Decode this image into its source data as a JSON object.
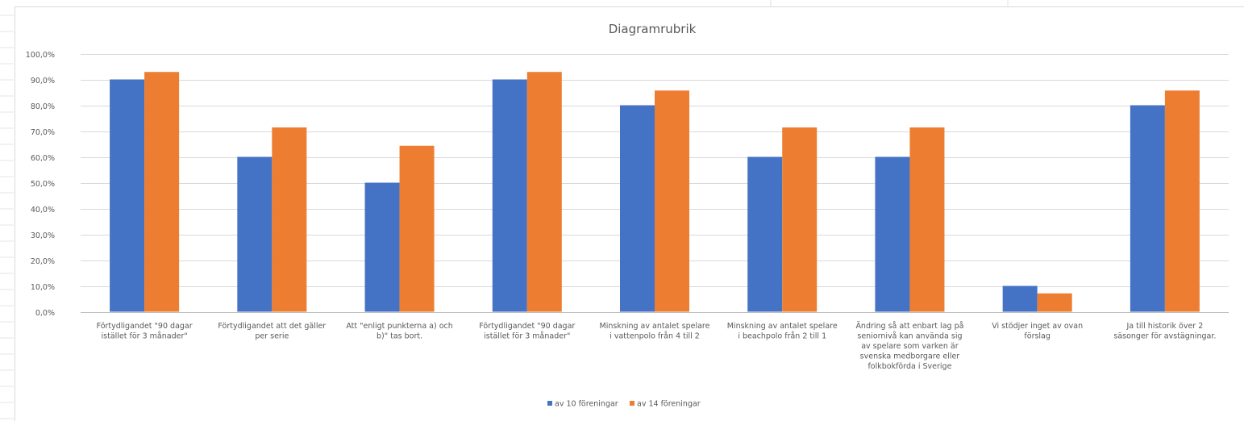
{
  "chart_data": {
    "type": "bar",
    "title": "Diagramrubrik",
    "xlabel": "",
    "ylabel": "",
    "ylim": [
      0,
      100
    ],
    "yticks": [
      "0,0%",
      "10,0%",
      "20,0%",
      "30,0%",
      "40,0%",
      "50,0%",
      "60,0%",
      "70,0%",
      "80,0%",
      "90,0%",
      "100,0%"
    ],
    "grid": true,
    "legend_position": "bottom",
    "categories": [
      [
        "Förtydligandet \"90 dagar",
        "istället för 3 månader\""
      ],
      [
        "Förtydligandet att det gäller",
        "per serie"
      ],
      [
        "Att \"enligt punkterna a) och",
        "b)\" tas bort."
      ],
      [
        "Förtydligandet \"90 dagar",
        "istället för 3 månader\""
      ],
      [
        "Minskning av antalet spelare",
        "i vattenpolo från 4 till 2"
      ],
      [
        "Minskning av antalet spelare",
        "i beachpolo från 2 till 1"
      ],
      [
        "Ändring så att enbart lag på",
        "seniornivå kan använda sig",
        "av spelare som varken är",
        "svenska medborgare eller",
        "folkbokförda i Sverige"
      ],
      [
        "Vi stödjer inget av ovan",
        "förslag"
      ],
      [
        "Ja till historik över 2",
        "säsonger för avstägningar."
      ]
    ],
    "series": [
      {
        "name": "av 10 föreningar",
        "color": "#4472c4",
        "values": [
          90,
          60,
          50,
          90,
          80,
          60,
          60,
          10,
          80
        ]
      },
      {
        "name": "av 14 föreningar",
        "color": "#ed7d31",
        "values": [
          92.9,
          71.4,
          64.3,
          92.9,
          85.7,
          71.4,
          71.4,
          7.1,
          85.7
        ]
      }
    ]
  }
}
